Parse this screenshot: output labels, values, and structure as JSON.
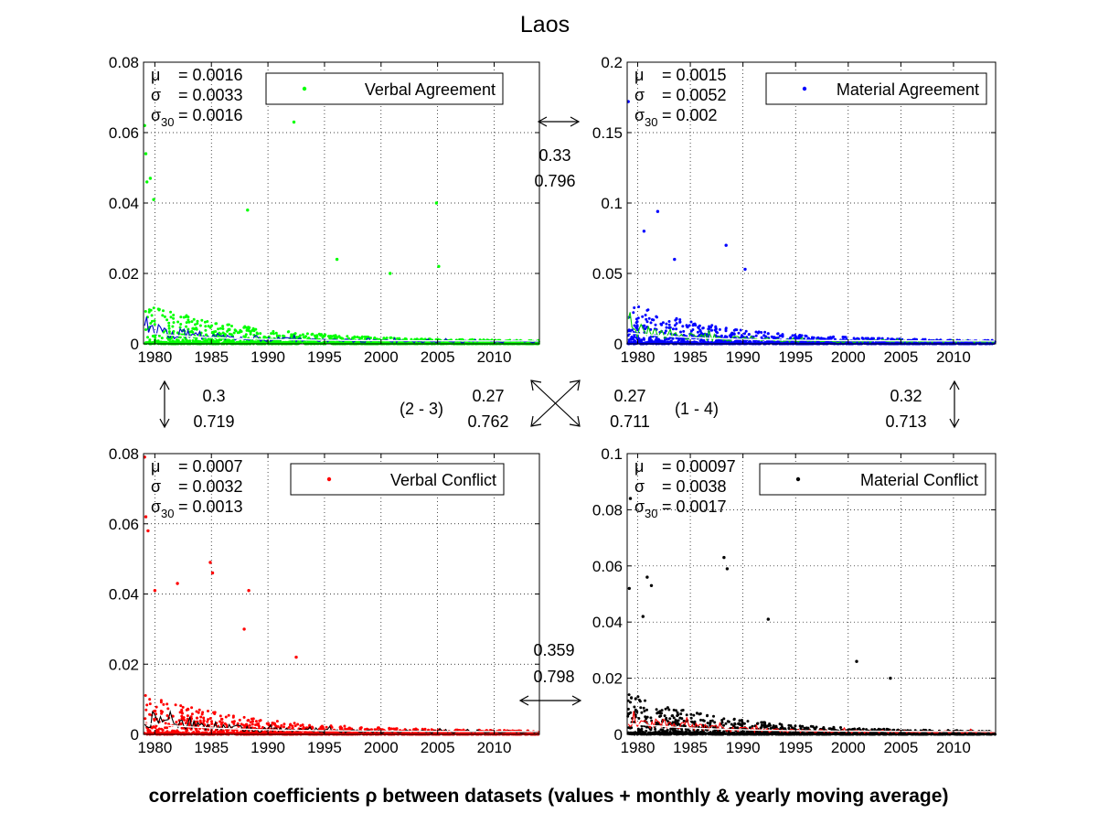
{
  "title": "Laos",
  "footer": "correlation coefficients ρ between datasets (values + monthly & yearly moving average)",
  "correlations": {
    "top": {
      "rho": "0.33",
      "smoothed": "0.796"
    },
    "left": {
      "rho": "0.3",
      "smoothed": "0.719"
    },
    "right": {
      "rho": "0.32",
      "smoothed": "0.713"
    },
    "bottom": {
      "rho": "0.359",
      "smoothed": "0.798"
    },
    "diag_2_3": {
      "label": "(2 - 3)",
      "rho": "0.27",
      "smoothed": "0.762"
    },
    "diag_1_4": {
      "label": "(1 - 4)",
      "rho": "0.27",
      "smoothed": "0.711"
    }
  },
  "chart_data": [
    {
      "type": "scatter",
      "series_name": "Verbal Agreement",
      "color": "#00ff00",
      "line_color": "#0000cc",
      "xlim": [
        1979,
        2014
      ],
      "ylim": [
        0,
        0.08
      ],
      "yticks": [
        "0",
        "0.02",
        "0.04",
        "0.06",
        "0.08"
      ],
      "xticks": [
        "1980",
        "1985",
        "1990",
        "1995",
        "2000",
        "2005",
        "2010"
      ],
      "stats": {
        "mu": "= 0.0016",
        "sigma": "= 0.0033",
        "sigma30": "= 0.0016"
      },
      "notable_points": [
        [
          1979.1,
          0.062
        ],
        [
          1979.2,
          0.054
        ],
        [
          1979.3,
          0.046
        ],
        [
          1979.6,
          0.047
        ],
        [
          1979.9,
          0.041
        ],
        [
          1988.2,
          0.038
        ],
        [
          1992.3,
          0.063
        ],
        [
          1996.1,
          0.024
        ],
        [
          2000.8,
          0.02
        ],
        [
          2004.9,
          0.04
        ],
        [
          2005.1,
          0.022
        ]
      ]
    },
    {
      "type": "scatter",
      "series_name": "Material Agreement",
      "color": "#0000ff",
      "line_color": "#00cc00",
      "xlim": [
        1979,
        2014
      ],
      "ylim": [
        0,
        0.2
      ],
      "yticks": [
        "0",
        "0.05",
        "0.1",
        "0.15",
        "0.2"
      ],
      "xticks": [
        "1980",
        "1985",
        "1990",
        "1995",
        "2000",
        "2005",
        "2010"
      ],
      "stats": {
        "mu": "= 0.0015",
        "sigma": "= 0.0052",
        "sigma30": "= 0.002"
      },
      "notable_points": [
        [
          1979.1,
          0.172
        ],
        [
          1980.6,
          0.08
        ],
        [
          1981.9,
          0.094
        ],
        [
          1988.4,
          0.07
        ],
        [
          1990.2,
          0.053
        ],
        [
          1983.5,
          0.06
        ]
      ]
    },
    {
      "type": "scatter",
      "series_name": "Verbal Conflict",
      "color": "#ff0000",
      "line_color": "#000000",
      "xlim": [
        1979,
        2014
      ],
      "ylim": [
        0,
        0.08
      ],
      "yticks": [
        "0",
        "0.02",
        "0.04",
        "0.06",
        "0.08"
      ],
      "xticks": [
        "1980",
        "1985",
        "1990",
        "1995",
        "2000",
        "2005",
        "2010"
      ],
      "stats": {
        "mu": "= 0.0007",
        "sigma": "= 0.0032",
        "sigma30": "= 0.0013"
      },
      "notable_points": [
        [
          1979.1,
          0.079
        ],
        [
          1979.2,
          0.062
        ],
        [
          1979.4,
          0.058
        ],
        [
          1980.0,
          0.041
        ],
        [
          1982.0,
          0.043
        ],
        [
          1984.9,
          0.049
        ],
        [
          1985.1,
          0.046
        ],
        [
          1988.3,
          0.041
        ],
        [
          1987.9,
          0.03
        ],
        [
          1992.5,
          0.022
        ]
      ]
    },
    {
      "type": "scatter",
      "series_name": "Material Conflict",
      "color": "#000000",
      "line_color": "#ff0000",
      "xlim": [
        1979,
        2014
      ],
      "ylim": [
        0,
        0.1
      ],
      "yticks": [
        "0",
        "0.02",
        "0.04",
        "0.06",
        "0.08",
        "0.1"
      ],
      "xticks": [
        "1980",
        "1985",
        "1990",
        "1995",
        "2000",
        "2005",
        "2010"
      ],
      "stats": {
        "mu": "= 0.00097",
        "sigma": "= 0.0038",
        "sigma30": "= 0.0017"
      },
      "notable_points": [
        [
          1979.3,
          0.084
        ],
        [
          1979.2,
          0.052
        ],
        [
          1980.9,
          0.056
        ],
        [
          1981.3,
          0.053
        ],
        [
          1980.5,
          0.042
        ],
        [
          1988.2,
          0.063
        ],
        [
          1988.5,
          0.059
        ],
        [
          1992.4,
          0.041
        ],
        [
          2000.8,
          0.026
        ],
        [
          2004.0,
          0.02
        ]
      ]
    }
  ]
}
